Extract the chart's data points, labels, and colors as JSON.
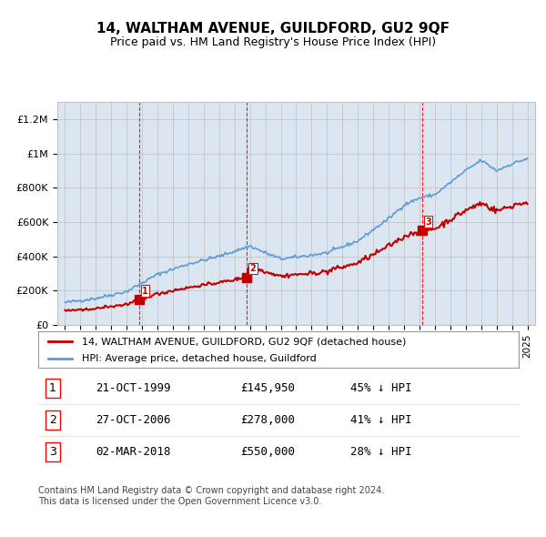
{
  "title": "14, WALTHAM AVENUE, GUILDFORD, GU2 9QF",
  "subtitle": "Price paid vs. HM Land Registry's House Price Index (HPI)",
  "legend_label_red": "14, WALTHAM AVENUE, GUILDFORD, GU2 9QF (detached house)",
  "legend_label_blue": "HPI: Average price, detached house, Guildford",
  "footer1": "Contains HM Land Registry data © Crown copyright and database right 2024.",
  "footer2": "This data is licensed under the Open Government Licence v3.0.",
  "transactions": [
    {
      "num": 1,
      "date": "21-OCT-1999",
      "price": "£145,950",
      "pct": "45% ↓ HPI",
      "year": 1999.8,
      "price_val": 145950
    },
    {
      "num": 2,
      "date": "27-OCT-2006",
      "price": "£278,000",
      "pct": "41% ↓ HPI",
      "year": 2006.8,
      "price_val": 278000
    },
    {
      "num": 3,
      "date": "02-MAR-2018",
      "price": "£550,000",
      "pct": "28% ↓ HPI",
      "year": 2018.17,
      "price_val": 550000
    }
  ],
  "hpi_color": "#5b9bd5",
  "price_color": "#c00000",
  "bg_color": "#dce6f1",
  "plot_bg": "#ffffff",
  "grid_color": "#c0c0c0",
  "vline_color": "#ff0000",
  "ylim": [
    0,
    1300000
  ],
  "yticks": [
    0,
    200000,
    400000,
    600000,
    800000,
    1000000,
    1200000
  ],
  "ytick_labels": [
    "£0",
    "£200K",
    "£400K",
    "£600K",
    "£800K",
    "£1M",
    "£1.2M"
  ],
  "xlim_start": 1994.5,
  "xlim_end": 2025.5,
  "xticks": [
    1995,
    1996,
    1997,
    1998,
    1999,
    2000,
    2001,
    2002,
    2003,
    2004,
    2005,
    2006,
    2007,
    2008,
    2009,
    2010,
    2011,
    2012,
    2013,
    2014,
    2015,
    2016,
    2017,
    2018,
    2019,
    2020,
    2021,
    2022,
    2023,
    2024,
    2025
  ]
}
